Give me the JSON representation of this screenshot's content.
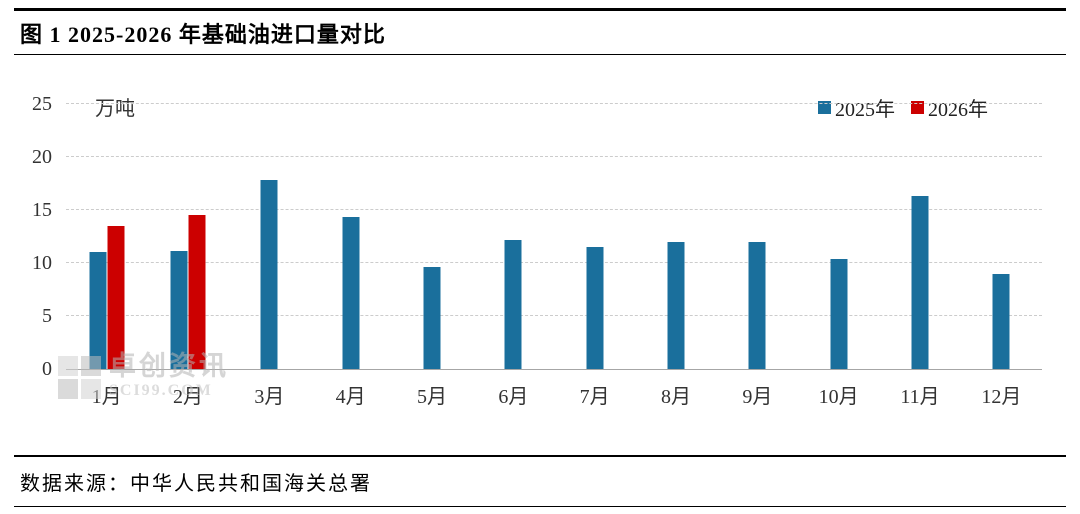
{
  "header": {
    "title": "图 1 2025-2026 年基础油进口量对比"
  },
  "chart_data": {
    "type": "bar",
    "title": "图 1 2025-2026 年基础油进口量对比",
    "unit": "万吨",
    "categories": [
      "1月",
      "2月",
      "3月",
      "4月",
      "5月",
      "6月",
      "7月",
      "8月",
      "9月",
      "10月",
      "11月",
      "12月"
    ],
    "series": [
      {
        "name": "2025年",
        "color": "#1a6f9c",
        "values": [
          11,
          11.1,
          17.8,
          14.3,
          9.6,
          12.2,
          11.5,
          12,
          12,
          10.4,
          16.3,
          9
        ]
      },
      {
        "name": "2026年",
        "color": "#cc0000",
        "values": [
          13.5,
          14.5,
          null,
          null,
          null,
          null,
          null,
          null,
          null,
          null,
          null,
          null
        ]
      }
    ],
    "ylim": [
      0,
      25
    ],
    "yticks": [
      0,
      5,
      10,
      15,
      20,
      25
    ],
    "grid": "dashed-horizontal",
    "legend_position": "top-right"
  },
  "watermark": {
    "name": "卓创资讯",
    "site": "SCI99.COM"
  },
  "footer": {
    "source": "数据来源：中华人民共和国海关总署"
  }
}
